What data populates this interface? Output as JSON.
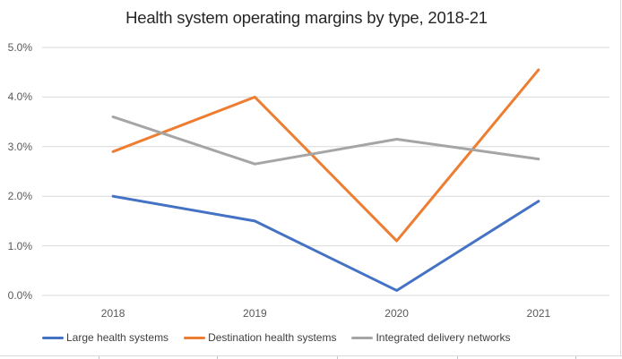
{
  "chart_data": {
    "type": "line",
    "title": "Health system operating margins by type, 2018-21",
    "categories": [
      "2018",
      "2019",
      "2020",
      "2021"
    ],
    "series": [
      {
        "name": "Large health systems",
        "color": "#4472C4",
        "values": [
          2.0,
          1.5,
          0.1,
          1.9
        ]
      },
      {
        "name": "Destination health systems",
        "color": "#ED7D31",
        "values": [
          2.9,
          4.0,
          1.1,
          4.55
        ]
      },
      {
        "name": "Integrated delivery networks",
        "color": "#A5A5A5",
        "values": [
          3.6,
          2.65,
          3.15,
          2.75
        ]
      }
    ],
    "y_ticks": [
      "5.0%",
      "4.0%",
      "3.0%",
      "2.0%",
      "1.0%",
      "0.0%"
    ],
    "ylim": [
      0,
      5
    ],
    "grid": true,
    "gridline_color": "#d9d9d9",
    "legend_position": "bottom",
    "xlabel": "",
    "ylabel": ""
  }
}
